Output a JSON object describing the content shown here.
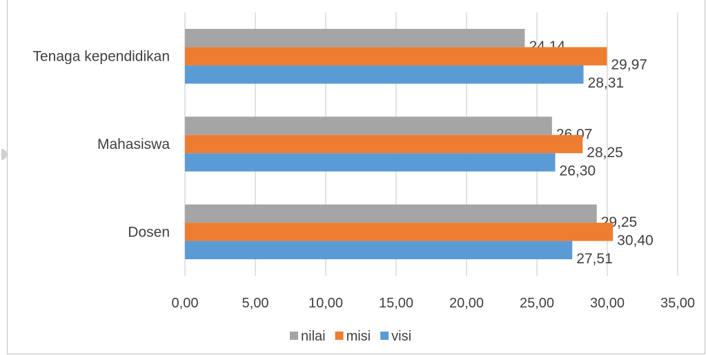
{
  "chart_data": {
    "type": "bar",
    "orientation": "horizontal",
    "categories": [
      "Dosen",
      "Mahasiswa",
      "Tenaga kependidikan"
    ],
    "series": [
      {
        "name": "visi",
        "color": "#5b9bd5",
        "values": [
          27.51,
          26.3,
          28.31
        ],
        "labels": [
          "27,51",
          "26,30",
          "28,31"
        ]
      },
      {
        "name": "misi",
        "color": "#ed7d31",
        "values": [
          30.4,
          28.25,
          29.97
        ],
        "labels": [
          "30,40",
          "28,25",
          "29,97"
        ]
      },
      {
        "name": "nilai",
        "color": "#a5a5a5",
        "values": [
          29.25,
          26.07,
          24.14
        ],
        "labels": [
          "29,25",
          "26,07",
          "24,14"
        ]
      }
    ],
    "xlim": [
      0,
      35
    ],
    "xticks": [
      0,
      5,
      10,
      15,
      20,
      25,
      30,
      35
    ],
    "xtick_labels": [
      "0,00",
      "5,00",
      "10,00",
      "15,00",
      "20,00",
      "25,00",
      "30,00",
      "35,00"
    ],
    "grid": true,
    "legend_position": "bottom",
    "legend_order": [
      "nilai",
      "misi",
      "visi"
    ]
  }
}
